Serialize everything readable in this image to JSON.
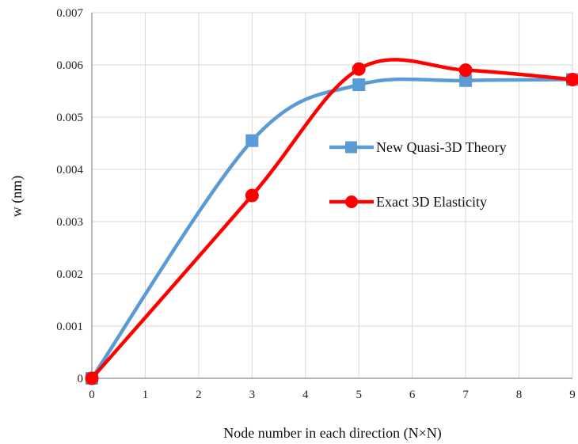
{
  "chart_data": {
    "type": "line",
    "title": "",
    "xlabel": "Node number in each direction (N×N)",
    "ylabel": "w (nm)",
    "xlim": [
      0,
      9
    ],
    "ylim": [
      0,
      0.007
    ],
    "x_ticks": [
      "0",
      "1",
      "2",
      "3",
      "4",
      "5",
      "6",
      "7",
      "8",
      "9"
    ],
    "y_ticks": [
      "0",
      "0.001",
      "0.002",
      "0.003",
      "0.004",
      "0.005",
      "0.006",
      "0.007"
    ],
    "grid": true,
    "legend_position": "right",
    "series": [
      {
        "name": "New Quasi-3D Theory",
        "color": "#5b9bd5",
        "marker": "square",
        "smooth": true,
        "x": [
          0,
          3,
          5,
          7,
          9
        ],
        "y": [
          0,
          0.00455,
          0.00562,
          0.0057,
          0.00572
        ]
      },
      {
        "name": "Exact 3D Elasticity",
        "color": "#ff0000",
        "marker": "circle",
        "smooth": true,
        "x": [
          0,
          3,
          5,
          7,
          9
        ],
        "y": [
          0,
          0.0035,
          0.00592,
          0.0059,
          0.00572
        ]
      }
    ]
  }
}
